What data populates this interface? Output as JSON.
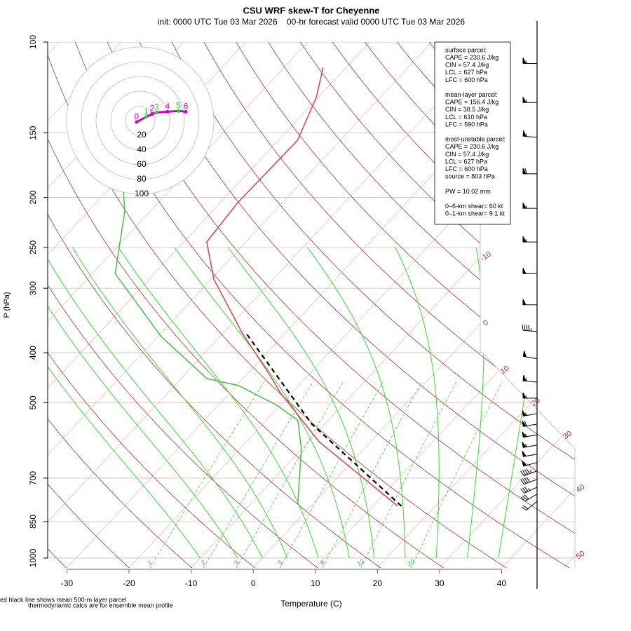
{
  "chart_data": {
    "type": "skewt",
    "title": "CSU WRF skew-T for Cheyenne",
    "subtitle": "init: 0000 UTC Tue 03 Mar 2026    00-hr forecast valid 0000 UTC Tue 03 Mar 2026",
    "x_label": "Temperature (C)",
    "y_label": "P (hPa)",
    "xlim": [
      -33.1,
      51.8
    ],
    "xticks": [
      -30,
      -20,
      -10,
      0,
      10,
      20,
      30,
      40
    ],
    "ylim": [
      1045,
      100
    ],
    "yticks": [
      100,
      150,
      200,
      250,
      300,
      400,
      500,
      700,
      850,
      1000
    ],
    "log_y": true,
    "isotherms": [
      -110,
      -100,
      -90,
      -80,
      -70,
      -60,
      -50,
      -40,
      -30,
      -20,
      -10,
      0,
      10,
      20,
      30,
      40,
      50
    ],
    "isotherm_labels": [
      -10,
      0,
      10,
      20,
      30,
      40,
      50
    ],
    "dry_adiabats": [
      240,
      250,
      260,
      270,
      280,
      290,
      300,
      310,
      320,
      330,
      340,
      350,
      360,
      370,
      380,
      390,
      400,
      410,
      420,
      430,
      440,
      450,
      460,
      470,
      480
    ],
    "moist_adiabats": [
      -10,
      -4,
      0,
      4,
      9,
      14,
      18,
      23,
      28,
      33,
      38
    ],
    "mixing_ratio": [
      1,
      2,
      3,
      5,
      8,
      12,
      20
    ],
    "temperature": {
      "color": "#d9485a",
      "pressure": [
        793,
        595,
        478,
        442,
        366,
        288,
        244,
        205,
        155,
        128,
        112
      ],
      "values": [
        14.0,
        -8.3,
        -21.9,
        -26.2,
        -37.0,
        -49.6,
        -56.3,
        -57.2,
        -56.9,
        -60.3,
        -63.7
      ]
    },
    "dewpoint": {
      "color": "#4fc04f",
      "pressure": [
        788,
        614,
        541,
        506,
        463,
        449,
        372,
        281,
        212,
        187
      ],
      "values": [
        -2.3,
        -10.1,
        -14.9,
        -20.5,
        -29.7,
        -35.8,
        -49.5,
        -66.3,
        -74.2,
        -78.8
      ]
    },
    "parcel": {
      "color": "#000000",
      "pressure": [
        793,
        550,
        366
      ],
      "values": [
        14.6,
        -12.1,
        -36.4
      ]
    },
    "hodograph": {
      "rings": [
        20,
        40,
        60,
        80,
        100
      ],
      "u": [
        -5,
        8,
        16,
        22,
        37,
        52,
        62
      ],
      "v": [
        -2,
        5,
        9,
        11,
        12,
        13,
        12
      ],
      "heights": [
        0,
        1,
        2,
        3,
        4,
        5,
        6
      ],
      "color": "#cc00cc"
    },
    "wind": {
      "pressure": [
        110,
        131,
        153,
        180,
        210,
        244,
        281,
        323,
        364,
        411,
        456,
        490,
        525,
        550,
        577,
        604,
        629,
        653,
        678,
        704,
        729,
        752,
        776
      ],
      "speed": [
        55,
        55,
        55,
        60,
        55,
        55,
        50,
        50,
        45,
        50,
        55,
        55,
        55,
        60,
        55,
        55,
        50,
        50,
        45,
        40,
        35,
        30,
        20
      ],
      "direction": [
        270,
        270,
        275,
        270,
        270,
        270,
        270,
        270,
        275,
        280,
        275,
        270,
        260,
        260,
        260,
        260,
        260,
        255,
        250,
        250,
        245,
        240,
        230
      ]
    },
    "stats": [
      [
        "surface parcel:",
        "CAPE = 230.6 J/kg",
        "CIN = 57.4 J/kg",
        "LCL = 627 hPa",
        "LFC = 600 hPa"
      ],
      [
        "mean-layer parcel:",
        "CAPE = 156.4 J/kg",
        "CIN = 38.5 J/kg",
        "LCL = 610 hPa",
        "LFC = 590 hPa"
      ],
      [
        "most-unstable parcel:",
        "CAPE = 230.6 J/kg",
        "CIN = 57.4 J/kg",
        "LCL = 627 hPa",
        "LFC = 600 hPa",
        "source = 803 hPa"
      ],
      [
        "PW =  10.02 mm"
      ],
      [
        "0–6-km shear= 60 kt",
        "0–1-km shear= 9.1 kt"
      ]
    ],
    "notes": [
      "ed black line shows mean 500-m layer parcel",
      "thermodynamic calcs are for ensemble mean profile"
    ]
  }
}
